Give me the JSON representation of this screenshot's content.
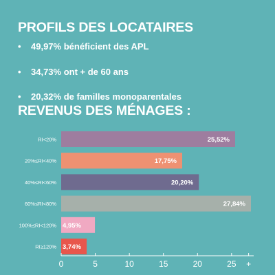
{
  "section1": {
    "title": "PROFILS DES LOCATAIRES",
    "bullets": [
      "49,97% bénéficient des APL",
      "34,73% ont + de 60 ans",
      "20,32% de familles monoparentales"
    ]
  },
  "section2": {
    "title": "REVENUS DES MÉNAGES :"
  },
  "colors": {
    "background": "#5fb3b6",
    "bars": [
      "#9e7d9f",
      "#ee9172",
      "#6f6b8f",
      "#a6b0aa",
      "#f0a9c2",
      "#e8564c"
    ]
  },
  "chart_data": {
    "type": "bar",
    "orientation": "horizontal",
    "categories": [
      "RI<20%",
      "20%≤RI<40%",
      "40%≤RI<60%",
      "60%≤RI<80%",
      "100%≤RI<120%",
      "RI≥120%"
    ],
    "values": [
      25.52,
      17.75,
      20.2,
      27.84,
      4.95,
      3.74
    ],
    "data_labels": [
      "25,52%",
      "17,75%",
      "20,20%",
      "27,84%",
      "4,95%",
      "3,74%"
    ],
    "xticks": [
      "0",
      "5",
      "10",
      "15",
      "20",
      "25",
      "+"
    ],
    "xtick_values": [
      0,
      5,
      10,
      15,
      20,
      25,
      27.5
    ],
    "xlim": [
      0,
      27.84
    ],
    "grid": false
  }
}
